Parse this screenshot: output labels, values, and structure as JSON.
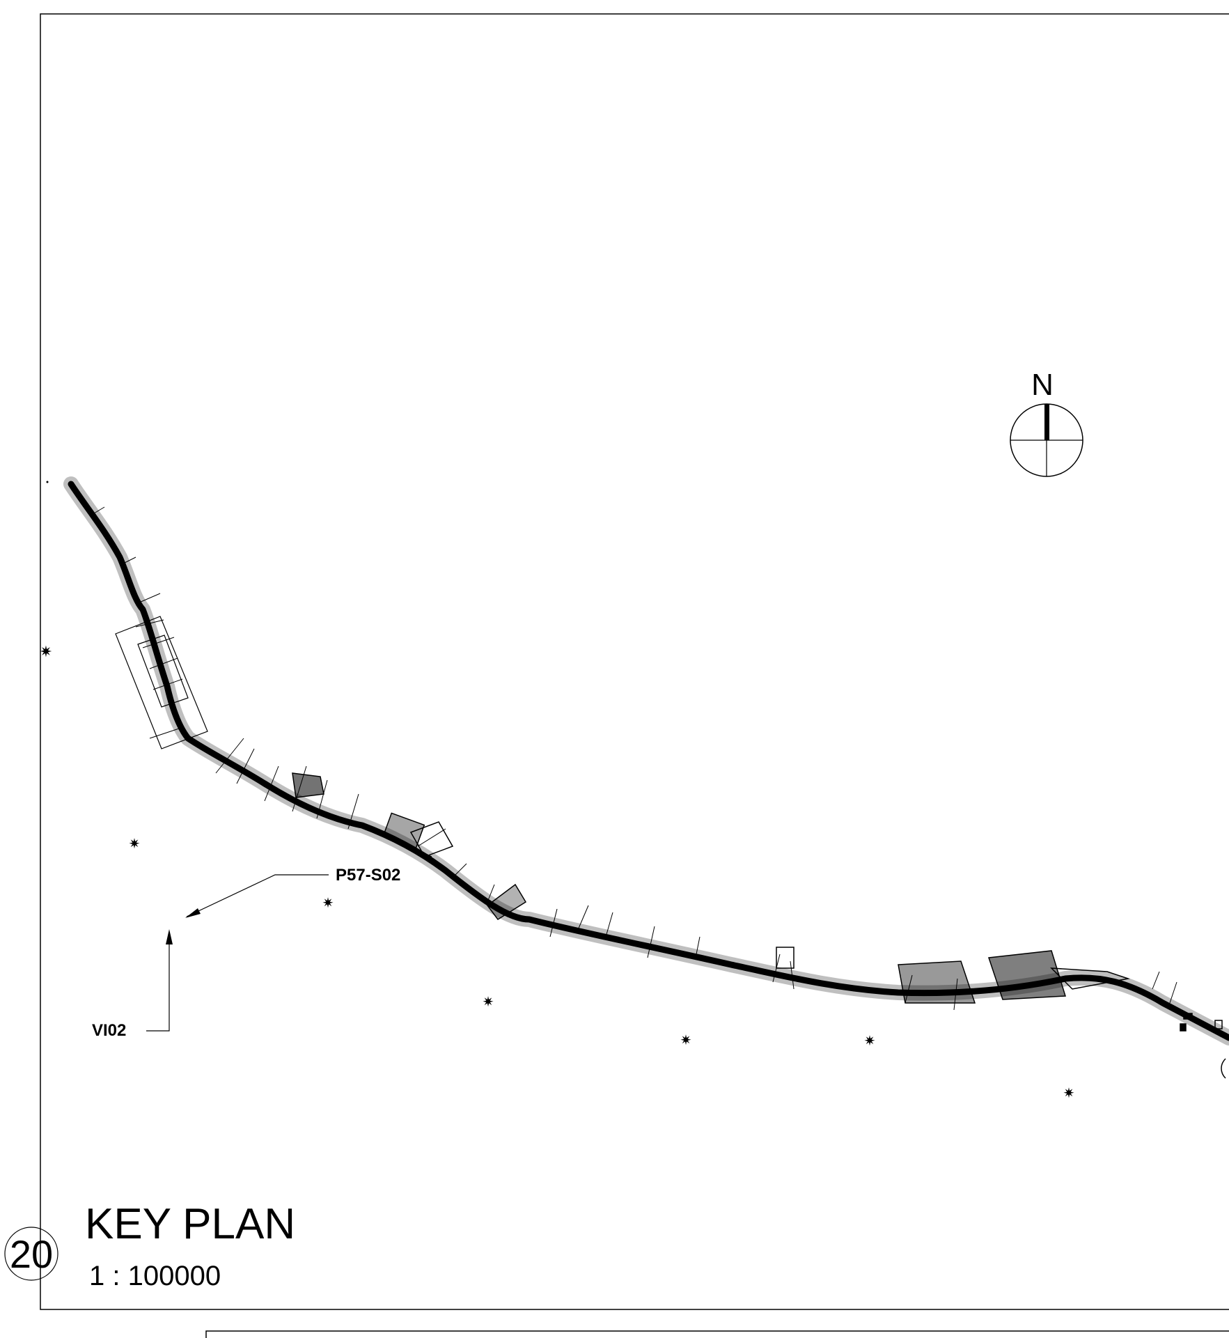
{
  "north_arrow": {
    "label": "N"
  },
  "callouts": {
    "section": {
      "label": "P57-S02"
    },
    "view": {
      "label": "VI02"
    }
  },
  "title_block": {
    "number": "20",
    "title": "KEY PLAN",
    "scale": "1 : 100000"
  },
  "colors": {
    "ink": "#000000",
    "paper": "#ffffff"
  }
}
